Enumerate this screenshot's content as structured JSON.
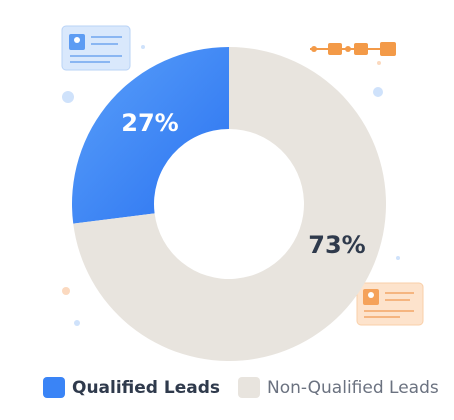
{
  "chart_data": {
    "type": "pie",
    "donut": true,
    "categories": [
      "Qualified Leads",
      "Non-Qualified Leads"
    ],
    "values": [
      27,
      73
    ],
    "value_labels": [
      "27%",
      "73%"
    ],
    "colors": [
      "#3a84f6",
      "#e8e4de"
    ],
    "legend": "bottom"
  }
}
